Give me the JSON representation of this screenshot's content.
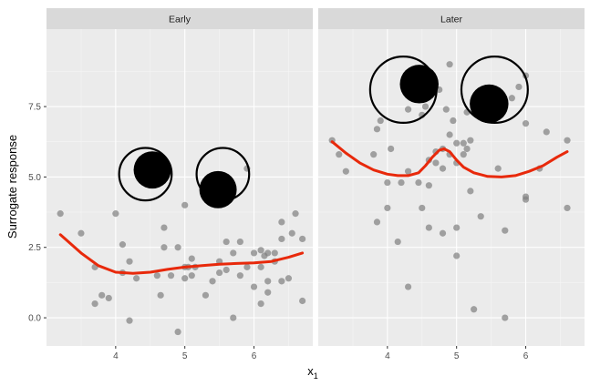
{
  "chart_data": {
    "type": "scatter",
    "xlabel": "x",
    "xlabel_subscript": "1",
    "ylabel": "Surrogate response",
    "xlim": [
      3.0,
      6.85
    ],
    "ylim": [
      -1.0,
      10.25
    ],
    "x_ticks": [
      4,
      5,
      6
    ],
    "y_ticks": [
      0.0,
      2.5,
      5.0,
      7.5
    ],
    "y_tick_labels": [
      "0.0",
      "2.5",
      "5.0",
      "7.5"
    ],
    "grid": true,
    "point_color": "#7f7f7f",
    "smooth_color": "#e8290b",
    "eye_color": "#000000",
    "panels": [
      {
        "label": "Early",
        "points": [
          [
            3.2,
            3.7
          ],
          [
            3.5,
            3.0
          ],
          [
            3.7,
            1.8
          ],
          [
            3.7,
            0.5
          ],
          [
            3.8,
            0.8
          ],
          [
            3.9,
            0.7
          ],
          [
            4.0,
            3.7
          ],
          [
            4.1,
            2.6
          ],
          [
            4.1,
            1.6
          ],
          [
            4.2,
            2.0
          ],
          [
            4.2,
            -0.1
          ],
          [
            4.3,
            1.4
          ],
          [
            4.6,
            1.5
          ],
          [
            4.65,
            0.8
          ],
          [
            4.7,
            3.2
          ],
          [
            4.7,
            2.5
          ],
          [
            4.8,
            1.5
          ],
          [
            4.9,
            2.5
          ],
          [
            4.9,
            -0.5
          ],
          [
            5.0,
            1.8
          ],
          [
            5.0,
            1.4
          ],
          [
            5.0,
            4.0
          ],
          [
            5.05,
            1.8
          ],
          [
            5.1,
            2.1
          ],
          [
            5.1,
            1.5
          ],
          [
            5.15,
            1.8
          ],
          [
            5.3,
            0.8
          ],
          [
            5.4,
            1.3
          ],
          [
            5.5,
            2.0
          ],
          [
            5.6,
            1.7
          ],
          [
            5.6,
            2.7
          ],
          [
            5.7,
            2.3
          ],
          [
            5.7,
            0.0
          ],
          [
            5.8,
            1.5
          ],
          [
            5.8,
            2.7
          ],
          [
            5.9,
            1.8
          ],
          [
            5.9,
            5.3
          ],
          [
            6.0,
            2.3
          ],
          [
            6.0,
            1.1
          ],
          [
            6.1,
            2.4
          ],
          [
            6.1,
            1.8
          ],
          [
            6.1,
            0.5
          ],
          [
            6.15,
            2.2
          ],
          [
            6.2,
            1.3
          ],
          [
            6.2,
            0.9
          ],
          [
            6.3,
            2.0
          ],
          [
            6.3,
            2.3
          ],
          [
            6.4,
            2.8
          ],
          [
            6.4,
            3.4
          ],
          [
            6.5,
            1.4
          ],
          [
            6.55,
            3.0
          ],
          [
            6.6,
            3.7
          ],
          [
            6.7,
            2.8
          ],
          [
            6.7,
            0.6
          ],
          [
            6.2,
            2.3
          ],
          [
            5.5,
            1.6
          ],
          [
            6.4,
            1.3
          ]
        ],
        "smooth": [
          [
            3.2,
            2.95
          ],
          [
            3.5,
            2.3
          ],
          [
            3.75,
            1.85
          ],
          [
            4.0,
            1.62
          ],
          [
            4.25,
            1.58
          ],
          [
            4.5,
            1.62
          ],
          [
            4.75,
            1.72
          ],
          [
            5.0,
            1.8
          ],
          [
            5.25,
            1.85
          ],
          [
            5.5,
            1.9
          ],
          [
            5.75,
            1.93
          ],
          [
            6.0,
            1.95
          ],
          [
            6.25,
            2.0
          ],
          [
            6.5,
            2.15
          ],
          [
            6.7,
            2.3
          ]
        ],
        "eyes": [
          {
            "cx": 4.43,
            "cy": 5.1,
            "r": 0.38,
            "pupil_cx": 4.53,
            "pupil_cy": 5.25,
            "pupil_r": 0.27
          },
          {
            "cx": 5.55,
            "cy": 5.1,
            "r": 0.38,
            "pupil_cx": 5.48,
            "pupil_cy": 4.55,
            "pupil_r": 0.27
          }
        ]
      },
      {
        "label": "Later",
        "points": [
          [
            3.2,
            6.3
          ],
          [
            3.3,
            5.8
          ],
          [
            3.4,
            5.2
          ],
          [
            3.8,
            5.8
          ],
          [
            3.85,
            6.7
          ],
          [
            3.9,
            7.0
          ],
          [
            3.85,
            3.4
          ],
          [
            4.0,
            4.8
          ],
          [
            4.05,
            6.0
          ],
          [
            4.0,
            3.9
          ],
          [
            4.15,
            2.7
          ],
          [
            4.2,
            4.8
          ],
          [
            4.3,
            5.2
          ],
          [
            4.3,
            1.1
          ],
          [
            4.3,
            7.4
          ],
          [
            4.45,
            4.8
          ],
          [
            4.5,
            3.9
          ],
          [
            4.5,
            7.2
          ],
          [
            4.55,
            7.5
          ],
          [
            4.6,
            5.6
          ],
          [
            4.6,
            4.7
          ],
          [
            4.6,
            3.2
          ],
          [
            4.7,
            5.5
          ],
          [
            4.75,
            8.1
          ],
          [
            4.8,
            6.0
          ],
          [
            4.8,
            5.3
          ],
          [
            4.8,
            3.0
          ],
          [
            4.85,
            7.4
          ],
          [
            4.9,
            6.5
          ],
          [
            4.9,
            5.8
          ],
          [
            4.9,
            9.0
          ],
          [
            4.95,
            7.0
          ],
          [
            5.0,
            6.2
          ],
          [
            5.0,
            5.5
          ],
          [
            5.0,
            3.2
          ],
          [
            5.0,
            2.2
          ],
          [
            5.1,
            6.2
          ],
          [
            5.1,
            5.8
          ],
          [
            5.15,
            7.3
          ],
          [
            5.2,
            6.3
          ],
          [
            5.2,
            4.5
          ],
          [
            5.25,
            0.3
          ],
          [
            5.3,
            7.5
          ],
          [
            5.35,
            3.6
          ],
          [
            5.45,
            8.1
          ],
          [
            5.6,
            5.3
          ],
          [
            5.7,
            3.1
          ],
          [
            5.7,
            0.0
          ],
          [
            5.8,
            7.8
          ],
          [
            5.9,
            8.2
          ],
          [
            6.0,
            8.6
          ],
          [
            6.0,
            6.9
          ],
          [
            6.0,
            4.3
          ],
          [
            6.0,
            4.2
          ],
          [
            6.2,
            5.3
          ],
          [
            6.3,
            6.6
          ],
          [
            6.6,
            6.3
          ],
          [
            6.6,
            3.9
          ],
          [
            4.7,
            5.9
          ],
          [
            5.15,
            6.0
          ]
        ],
        "smooth": [
          [
            3.2,
            6.25
          ],
          [
            3.4,
            5.85
          ],
          [
            3.6,
            5.5
          ],
          [
            3.8,
            5.25
          ],
          [
            4.0,
            5.1
          ],
          [
            4.15,
            5.05
          ],
          [
            4.3,
            5.05
          ],
          [
            4.45,
            5.15
          ],
          [
            4.55,
            5.4
          ],
          [
            4.65,
            5.7
          ],
          [
            4.75,
            5.95
          ],
          [
            4.82,
            6.0
          ],
          [
            4.9,
            5.9
          ],
          [
            5.0,
            5.6
          ],
          [
            5.1,
            5.35
          ],
          [
            5.25,
            5.15
          ],
          [
            5.45,
            5.02
          ],
          [
            5.65,
            5.0
          ],
          [
            5.85,
            5.05
          ],
          [
            6.05,
            5.2
          ],
          [
            6.25,
            5.4
          ],
          [
            6.45,
            5.7
          ],
          [
            6.6,
            5.9
          ]
        ],
        "eyes": [
          {
            "cx": 4.23,
            "cy": 8.1,
            "r": 0.48,
            "pupil_cx": 4.46,
            "pupil_cy": 8.3,
            "pupil_r": 0.28
          },
          {
            "cx": 5.55,
            "cy": 8.1,
            "r": 0.48,
            "pupil_cx": 5.47,
            "pupil_cy": 7.6,
            "pupil_r": 0.28
          }
        ]
      }
    ]
  }
}
